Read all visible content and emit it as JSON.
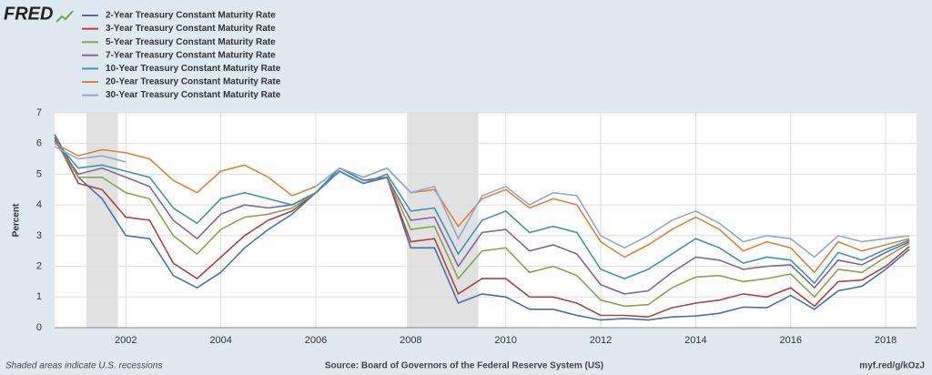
{
  "chart_data": {
    "type": "line",
    "logo": "FRED",
    "y_label": "Percent",
    "footer_left": "Shaded areas indicate U.S. recessions",
    "footer_center": "Source: Board of Governors of the Federal Reserve System (US)",
    "footer_right": "myf.red/g/kOzJ",
    "x": [
      2000.5,
      2001.0,
      2001.5,
      2002.0,
      2002.5,
      2003.0,
      2003.5,
      2004.0,
      2004.5,
      2005.0,
      2005.5,
      2006.0,
      2006.5,
      2007.0,
      2007.5,
      2008.0,
      2008.5,
      2009.0,
      2009.5,
      2010.0,
      2010.5,
      2011.0,
      2011.5,
      2012.0,
      2012.5,
      2013.0,
      2013.5,
      2014.0,
      2014.5,
      2015.0,
      2015.5,
      2016.0,
      2016.5,
      2017.0,
      2017.5,
      2018.0,
      2018.5
    ],
    "series": [
      {
        "name": "2-Year Treasury Constant Maturity Rate",
        "color": "#4572a7",
        "values": [
          6.3,
          4.9,
          4.2,
          3.0,
          2.9,
          1.7,
          1.3,
          1.8,
          2.6,
          3.2,
          3.7,
          4.4,
          5.2,
          4.8,
          4.9,
          2.6,
          2.6,
          0.8,
          1.1,
          1.0,
          0.6,
          0.6,
          0.4,
          0.25,
          0.3,
          0.25,
          0.35,
          0.38,
          0.47,
          0.67,
          0.65,
          1.05,
          0.6,
          1.2,
          1.35,
          1.9,
          2.55
        ]
      },
      {
        "name": "3-Year Treasury Constant Maturity Rate",
        "color": "#aa4643",
        "values": [
          6.2,
          4.7,
          4.5,
          3.6,
          3.5,
          2.1,
          1.6,
          2.3,
          3.0,
          3.5,
          3.8,
          4.4,
          5.1,
          4.7,
          4.9,
          2.8,
          2.9,
          1.1,
          1.6,
          1.6,
          1.0,
          1.0,
          0.8,
          0.4,
          0.4,
          0.35,
          0.65,
          0.8,
          0.9,
          1.1,
          1.0,
          1.3,
          0.7,
          1.5,
          1.55,
          2.0,
          2.65
        ]
      },
      {
        "name": "5-Year Treasury Constant Maturity Rate",
        "color": "#89a54e",
        "values": [
          6.1,
          4.9,
          4.9,
          4.4,
          4.2,
          3.0,
          2.4,
          3.2,
          3.6,
          3.7,
          3.9,
          4.4,
          5.1,
          4.7,
          4.9,
          3.2,
          3.3,
          1.6,
          2.5,
          2.6,
          1.8,
          2.0,
          1.7,
          0.9,
          0.7,
          0.75,
          1.3,
          1.65,
          1.7,
          1.5,
          1.6,
          1.75,
          1.0,
          1.9,
          1.8,
          2.3,
          2.75
        ]
      },
      {
        "name": "7-Year Treasury Constant Maturity Rate",
        "color": "#80699b",
        "values": [
          6.1,
          5.0,
          5.2,
          4.9,
          4.6,
          3.5,
          2.9,
          3.7,
          4.0,
          3.9,
          4.0,
          4.4,
          5.1,
          4.7,
          4.9,
          3.5,
          3.6,
          2.0,
          3.1,
          3.2,
          2.5,
          2.7,
          2.4,
          1.4,
          1.1,
          1.2,
          1.8,
          2.3,
          2.2,
          1.9,
          2.0,
          2.05,
          1.3,
          2.2,
          2.05,
          2.45,
          2.8
        ]
      },
      {
        "name": "10-Year Treasury Constant Maturity Rate",
        "color": "#3d96ae",
        "values": [
          6.1,
          5.2,
          5.3,
          5.1,
          4.9,
          3.9,
          3.4,
          4.2,
          4.4,
          4.2,
          4.0,
          4.4,
          5.1,
          4.7,
          5.0,
          3.8,
          3.9,
          2.4,
          3.5,
          3.8,
          3.1,
          3.3,
          3.1,
          1.9,
          1.6,
          1.9,
          2.4,
          2.9,
          2.6,
          2.1,
          2.3,
          2.2,
          1.45,
          2.45,
          2.2,
          2.55,
          2.85
        ]
      },
      {
        "name": "20-Year Treasury Constant Maturity Rate",
        "color": "#db843d",
        "values": [
          6.0,
          5.6,
          5.8,
          5.7,
          5.5,
          4.8,
          4.4,
          5.1,
          5.3,
          4.9,
          4.3,
          4.6,
          5.2,
          4.9,
          5.2,
          4.4,
          4.5,
          3.3,
          4.2,
          4.5,
          3.9,
          4.2,
          4.0,
          2.8,
          2.3,
          2.7,
          3.2,
          3.6,
          3.2,
          2.5,
          2.8,
          2.6,
          1.8,
          2.8,
          2.5,
          2.7,
          2.9
        ]
      },
      {
        "name": "30-Year Treasury Constant Maturity Rate",
        "color": "#92a8cd",
        "values": [
          5.9,
          5.5,
          5.6,
          5.4,
          null,
          null,
          null,
          null,
          null,
          null,
          null,
          4.6,
          5.2,
          4.9,
          5.2,
          4.4,
          4.6,
          2.9,
          4.3,
          4.6,
          4.0,
          4.4,
          4.3,
          3.0,
          2.6,
          3.0,
          3.5,
          3.8,
          3.4,
          2.8,
          3.0,
          2.9,
          2.3,
          3.0,
          2.8,
          2.9,
          3.0
        ]
      }
    ],
    "recessions": [
      [
        2001.17,
        2001.83
      ],
      [
        2007.92,
        2009.42
      ]
    ],
    "recession_color": "#e1e1e1",
    "xlim": [
      2000.5,
      2018.65
    ],
    "xticks": [
      2002,
      2004,
      2006,
      2008,
      2010,
      2012,
      2014,
      2016,
      2018
    ],
    "ylim": [
      0,
      7
    ],
    "yticks": [
      0,
      1,
      2,
      3,
      4,
      5,
      6,
      7
    ],
    "grid": true
  }
}
